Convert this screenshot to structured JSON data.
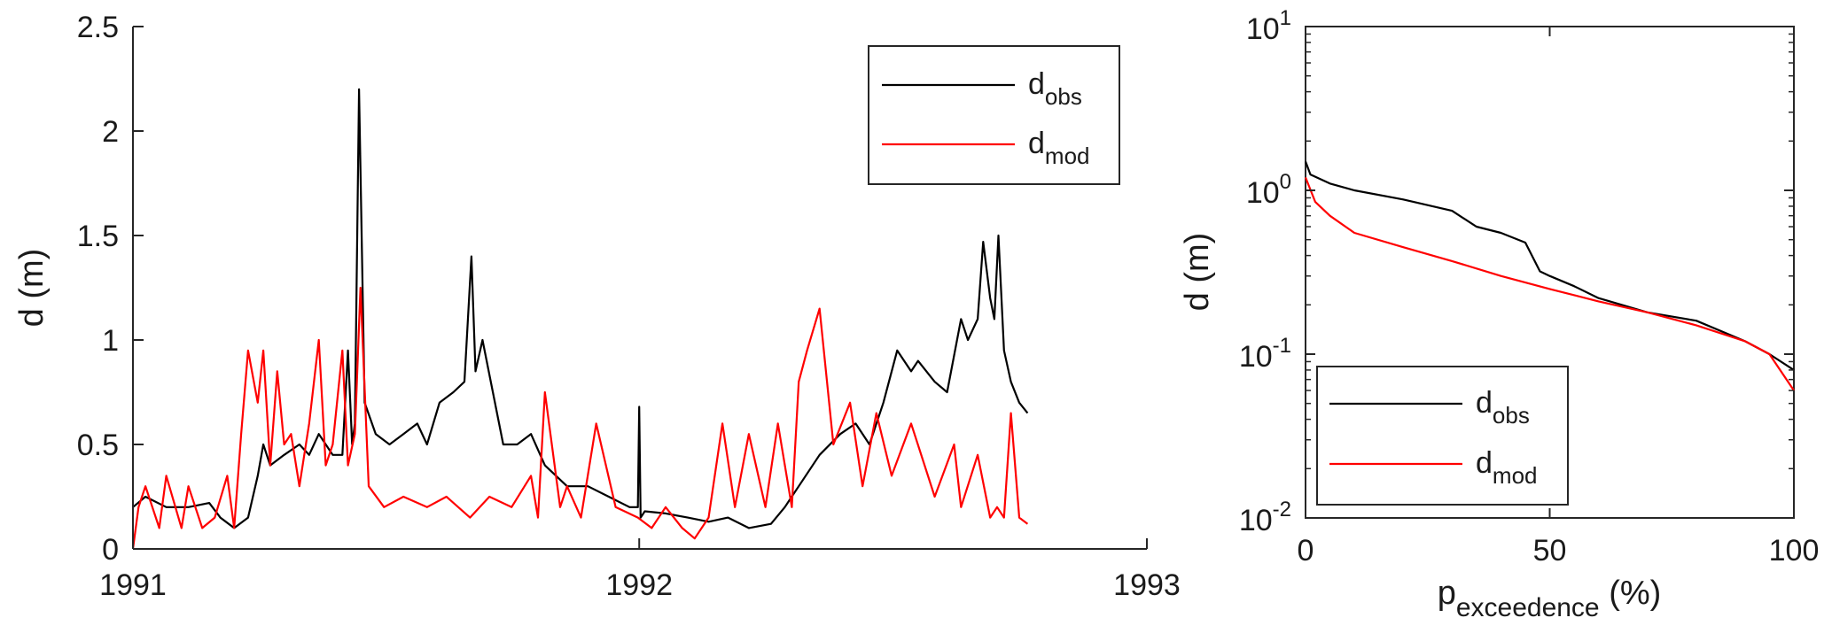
{
  "chart_data": [
    {
      "type": "line",
      "xlabel": "",
      "ylabel": "d (m)",
      "xlim": [
        "1991-01-01",
        "1993-01-01"
      ],
      "ylim": [
        0,
        2.5
      ],
      "xticks": [
        "1991",
        "1992",
        "1993"
      ],
      "yticks": [
        "0",
        "0.5",
        "1",
        "1.5",
        "2",
        "2.5"
      ],
      "grid": false,
      "legend_position": "top-right",
      "series": [
        {
          "name": "d",
          "name_subscript": "obs",
          "color": "#000000",
          "x": [
            "1991-01-01",
            "1991-01-10",
            "1991-01-25",
            "1991-02-10",
            "1991-02-25",
            "1991-03-05",
            "1991-03-15",
            "1991-03-25",
            "1991-04-01",
            "1991-04-05",
            "1991-04-10",
            "1991-04-20",
            "1991-05-01",
            "1991-05-08",
            "1991-05-15",
            "1991-05-25",
            "1991-06-01",
            "1991-06-05",
            "1991-06-08",
            "1991-06-10",
            "1991-06-13",
            "1991-06-17",
            "1991-06-25",
            "1991-07-05",
            "1991-07-15",
            "1991-07-25",
            "1991-08-01",
            "1991-08-10",
            "1991-08-20",
            "1991-08-28",
            "1991-09-02",
            "1991-09-05",
            "1991-09-10",
            "1991-09-25",
            "1991-10-05",
            "1991-10-15",
            "1991-10-25",
            "1991-11-10",
            "1991-11-25",
            "1991-12-10",
            "1991-12-25",
            "1991-12-31",
            "1992-01-01",
            "1992-01-02",
            "1992-01-05",
            "1992-01-20",
            "1992-02-05",
            "1992-02-20",
            "1992-03-05",
            "1992-03-20",
            "1992-04-05",
            "1992-04-15",
            "1992-04-25",
            "1992-05-10",
            "1992-05-25",
            "1992-06-05",
            "1992-06-15",
            "1992-06-25",
            "1992-07-05",
            "1992-07-15",
            "1992-07-20",
            "1992-08-01",
            "1992-08-10",
            "1992-08-20",
            "1992-08-25",
            "1992-09-01",
            "1992-09-05",
            "1992-09-10",
            "1992-09-13",
            "1992-09-16",
            "1992-09-20",
            "1992-09-25",
            "1992-10-01",
            "1992-10-07"
          ],
          "y": [
            0.2,
            0.25,
            0.2,
            0.2,
            0.22,
            0.15,
            0.1,
            0.15,
            0.35,
            0.5,
            0.4,
            0.45,
            0.5,
            0.45,
            0.55,
            0.45,
            0.45,
            0.95,
            0.5,
            0.6,
            2.2,
            0.7,
            0.55,
            0.5,
            0.55,
            0.6,
            0.5,
            0.7,
            0.75,
            0.8,
            1.4,
            0.85,
            1.0,
            0.5,
            0.5,
            0.55,
            0.4,
            0.3,
            0.3,
            0.25,
            0.2,
            0.2,
            0.68,
            0.15,
            0.18,
            0.17,
            0.15,
            0.13,
            0.15,
            0.1,
            0.12,
            0.2,
            0.3,
            0.45,
            0.55,
            0.6,
            0.5,
            0.7,
            0.95,
            0.85,
            0.9,
            0.8,
            0.75,
            1.1,
            1.0,
            1.1,
            1.47,
            1.2,
            1.1,
            1.5,
            0.95,
            0.8,
            0.7,
            0.65
          ]
        },
        {
          "name": "d",
          "name_subscript": "mod",
          "color": "#ff0000",
          "x": [
            "1991-01-01",
            "1991-01-05",
            "1991-01-10",
            "1991-01-20",
            "1991-01-25",
            "1991-02-05",
            "1991-02-10",
            "1991-02-20",
            "1991-03-01",
            "1991-03-10",
            "1991-03-15",
            "1991-03-20",
            "1991-03-25",
            "1991-04-01",
            "1991-04-05",
            "1991-04-10",
            "1991-04-15",
            "1991-04-20",
            "1991-04-25",
            "1991-05-01",
            "1991-05-08",
            "1991-05-15",
            "1991-05-20",
            "1991-05-25",
            "1991-06-01",
            "1991-06-05",
            "1991-06-10",
            "1991-06-14",
            "1991-06-20",
            "1991-07-01",
            "1991-07-15",
            "1991-08-01",
            "1991-08-15",
            "1991-09-01",
            "1991-09-15",
            "1991-10-01",
            "1991-10-15",
            "1991-10-20",
            "1991-10-25",
            "1991-11-05",
            "1991-11-10",
            "1991-11-20",
            "1991-12-01",
            "1991-12-15",
            "1991-12-31",
            "1992-01-10",
            "1992-01-20",
            "1992-02-01",
            "1992-02-10",
            "1992-02-20",
            "1992-03-01",
            "1992-03-10",
            "1992-03-20",
            "1992-04-01",
            "1992-04-10",
            "1992-04-20",
            "1992-04-25",
            "1992-05-01",
            "1992-05-10",
            "1992-05-20",
            "1992-06-01",
            "1992-06-10",
            "1992-06-20",
            "1992-07-01",
            "1992-07-15",
            "1992-08-01",
            "1992-08-15",
            "1992-08-20",
            "1992-09-01",
            "1992-09-10",
            "1992-09-15",
            "1992-09-20",
            "1992-09-25",
            "1992-10-01",
            "1992-10-07"
          ],
          "y": [
            0.0,
            0.2,
            0.3,
            0.1,
            0.35,
            0.1,
            0.3,
            0.1,
            0.15,
            0.35,
            0.1,
            0.55,
            0.95,
            0.7,
            0.95,
            0.4,
            0.85,
            0.5,
            0.55,
            0.3,
            0.6,
            1.0,
            0.4,
            0.5,
            0.95,
            0.4,
            0.55,
            1.25,
            0.3,
            0.2,
            0.25,
            0.2,
            0.25,
            0.15,
            0.25,
            0.2,
            0.35,
            0.15,
            0.75,
            0.2,
            0.3,
            0.15,
            0.6,
            0.2,
            0.15,
            0.1,
            0.2,
            0.1,
            0.05,
            0.15,
            0.6,
            0.2,
            0.55,
            0.2,
            0.6,
            0.2,
            0.8,
            0.95,
            1.15,
            0.5,
            0.7,
            0.3,
            0.65,
            0.35,
            0.6,
            0.25,
            0.5,
            0.2,
            0.45,
            0.15,
            0.2,
            0.15,
            0.65,
            0.15,
            0.12
          ]
        }
      ]
    },
    {
      "type": "line",
      "xlabel": "p",
      "xlabel_subscript": "exceedence",
      "xlabel_suffix": "(%)",
      "ylabel": "d (m)",
      "xlim": [
        0,
        100
      ],
      "ylim": [
        0.01,
        10
      ],
      "yscale": "log",
      "xticks": [
        "0",
        "50",
        "100"
      ],
      "yticks": [
        {
          "base": "10",
          "exp": "-2"
        },
        {
          "base": "10",
          "exp": "-1"
        },
        {
          "base": "10",
          "exp": "0"
        },
        {
          "base": "10",
          "exp": "1"
        }
      ],
      "grid": false,
      "legend_position": "bottom-left",
      "series": [
        {
          "name": "d",
          "name_subscript": "obs",
          "color": "#000000",
          "x": [
            0,
            1,
            5,
            10,
            20,
            30,
            35,
            40,
            45,
            48,
            50,
            55,
            60,
            70,
            80,
            90,
            95,
            100
          ],
          "y": [
            1.5,
            1.25,
            1.1,
            1.0,
            0.88,
            0.75,
            0.6,
            0.55,
            0.48,
            0.32,
            0.3,
            0.26,
            0.22,
            0.18,
            0.16,
            0.12,
            0.1,
            0.08
          ]
        },
        {
          "name": "d",
          "name_subscript": "mod",
          "color": "#ff0000",
          "x": [
            0,
            2,
            5,
            10,
            20,
            30,
            40,
            50,
            60,
            70,
            80,
            90,
            95,
            100
          ],
          "y": [
            1.2,
            0.85,
            0.7,
            0.55,
            0.45,
            0.37,
            0.3,
            0.25,
            0.21,
            0.18,
            0.15,
            0.12,
            0.1,
            0.06
          ]
        }
      ]
    }
  ]
}
